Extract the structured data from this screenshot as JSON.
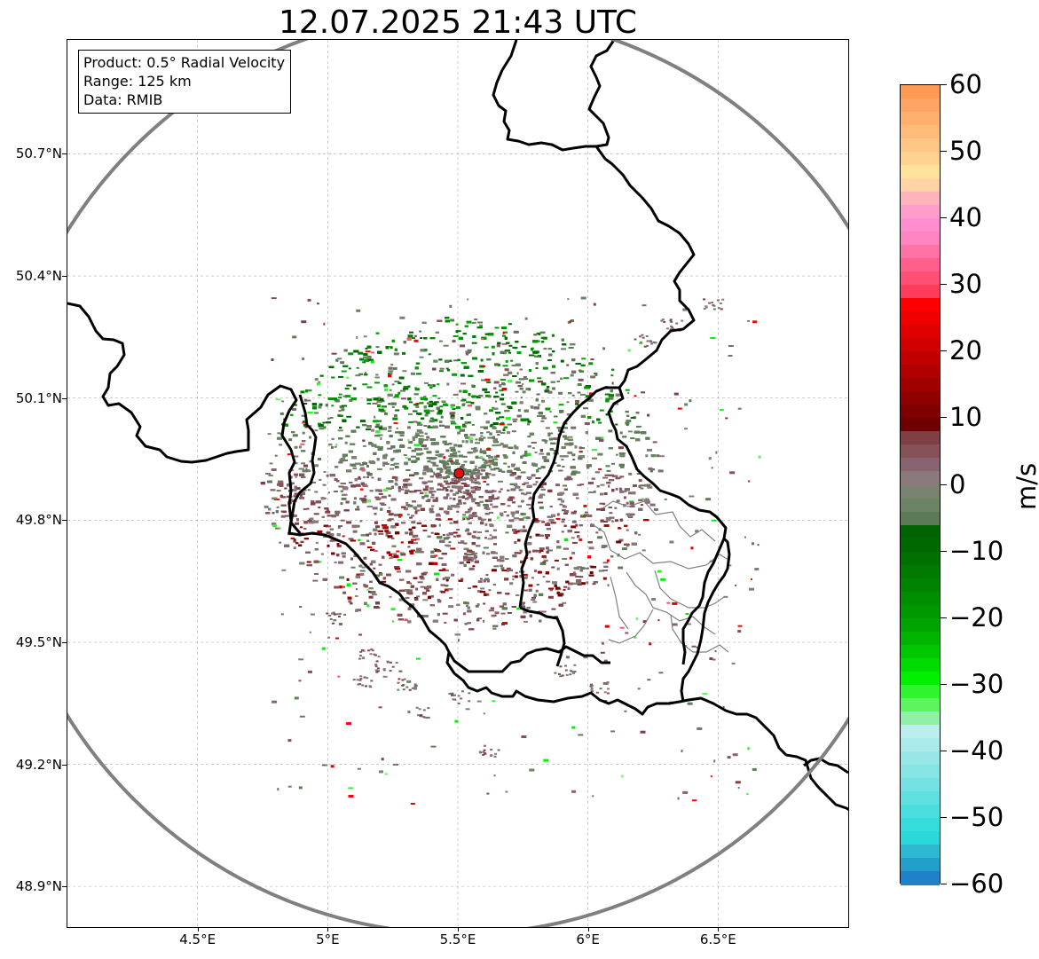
{
  "title": "12.07.2025 21:43 UTC",
  "info_box": {
    "product": "Product: 0.5° Radial Velocity",
    "range": "Range: 125 km",
    "data": "Data: RMIB"
  },
  "map": {
    "lon_range": [
      4.0,
      7.0
    ],
    "lat_range": [
      48.8,
      50.98
    ],
    "lat_ticks": [
      {
        "value": 48.9,
        "label": "48.9°N"
      },
      {
        "value": 49.2,
        "label": "49.2°N"
      },
      {
        "value": 49.5,
        "label": "49.5°N"
      },
      {
        "value": 49.8,
        "label": "49.8°N"
      },
      {
        "value": 50.1,
        "label": "50.1°N"
      },
      {
        "value": 50.4,
        "label": "50.4°N"
      },
      {
        "value": 50.7,
        "label": "50.7°N"
      }
    ],
    "lon_ticks": [
      {
        "value": 4.5,
        "label": "4.5°E"
      },
      {
        "value": 5.0,
        "label": "5°E"
      },
      {
        "value": 5.5,
        "label": "5.5°E"
      },
      {
        "value": 6.0,
        "label": "6°E"
      },
      {
        "value": 6.5,
        "label": "6.5°E"
      }
    ],
    "radar_site": {
      "lon": 5.505,
      "lat": 49.915
    },
    "range_ring_km": 125,
    "colors": {
      "range_ring": "#808080",
      "border": "#000000",
      "admin": "#808080",
      "grid": "#b0b0b0",
      "site_marker": "#e01010"
    }
  },
  "colorbar": {
    "unit": "m/s",
    "min": -60,
    "max": 60,
    "ticks": [
      {
        "value": 60,
        "label": "60"
      },
      {
        "value": 50,
        "label": "50"
      },
      {
        "value": 40,
        "label": "40"
      },
      {
        "value": 30,
        "label": "30"
      },
      {
        "value": 20,
        "label": "20"
      },
      {
        "value": 10,
        "label": "10"
      },
      {
        "value": 0,
        "label": "0"
      },
      {
        "value": -10,
        "label": "−10"
      },
      {
        "value": -20,
        "label": "−20"
      },
      {
        "value": -30,
        "label": "−30"
      },
      {
        "value": -40,
        "label": "−40"
      },
      {
        "value": -50,
        "label": "−50"
      },
      {
        "value": -60,
        "label": "−60"
      }
    ],
    "bands": [
      {
        "from": 58,
        "to": 60,
        "color": "#ff9a55"
      },
      {
        "from": 56,
        "to": 58,
        "color": "#ffa563"
      },
      {
        "from": 54,
        "to": 56,
        "color": "#ffb06f"
      },
      {
        "from": 52,
        "to": 54,
        "color": "#ffbb7a"
      },
      {
        "from": 50,
        "to": 52,
        "color": "#ffc785"
      },
      {
        "from": 48,
        "to": 50,
        "color": "#ffd291"
      },
      {
        "from": 46,
        "to": 48,
        "color": "#ffe39b"
      },
      {
        "from": 44,
        "to": 46,
        "color": "#ffd3a5"
      },
      {
        "from": 42,
        "to": 44,
        "color": "#ffb3bb"
      },
      {
        "from": 40,
        "to": 42,
        "color": "#ff9dcb"
      },
      {
        "from": 38,
        "to": 40,
        "color": "#ff8ed0"
      },
      {
        "from": 36,
        "to": 38,
        "color": "#ff85c2"
      },
      {
        "from": 34,
        "to": 36,
        "color": "#ff72a6"
      },
      {
        "from": 32,
        "to": 34,
        "color": "#ff5f8b"
      },
      {
        "from": 30,
        "to": 32,
        "color": "#ff4f74"
      },
      {
        "from": 28,
        "to": 30,
        "color": "#ff3c5a"
      },
      {
        "from": 26,
        "to": 28,
        "color": "#ff0000"
      },
      {
        "from": 24,
        "to": 26,
        "color": "#f00000"
      },
      {
        "from": 22,
        "to": 24,
        "color": "#e00000"
      },
      {
        "from": 20,
        "to": 22,
        "color": "#d00000"
      },
      {
        "from": 18,
        "to": 20,
        "color": "#c00000"
      },
      {
        "from": 16,
        "to": 18,
        "color": "#b00000"
      },
      {
        "from": 14,
        "to": 16,
        "color": "#a00000"
      },
      {
        "from": 12,
        "to": 14,
        "color": "#900000"
      },
      {
        "from": 10,
        "to": 12,
        "color": "#800000"
      },
      {
        "from": 8,
        "to": 10,
        "color": "#6e0000"
      },
      {
        "from": 6,
        "to": 8,
        "color": "#7e4044"
      },
      {
        "from": 4,
        "to": 6,
        "color": "#875158"
      },
      {
        "from": 2,
        "to": 4,
        "color": "#876470"
      },
      {
        "from": 0,
        "to": 2,
        "color": "#8a7a7c"
      },
      {
        "from": -2,
        "to": 0,
        "color": "#7a8270"
      },
      {
        "from": -4,
        "to": -2,
        "color": "#6a8464"
      },
      {
        "from": -6,
        "to": -4,
        "color": "#5c7a56"
      },
      {
        "from": -8,
        "to": -6,
        "color": "#006400"
      },
      {
        "from": -10,
        "to": -8,
        "color": "#006800"
      },
      {
        "from": -12,
        "to": -10,
        "color": "#007000"
      },
      {
        "from": -14,
        "to": -12,
        "color": "#007a00"
      },
      {
        "from": -16,
        "to": -14,
        "color": "#008400"
      },
      {
        "from": -18,
        "to": -16,
        "color": "#008e00"
      },
      {
        "from": -20,
        "to": -18,
        "color": "#009800"
      },
      {
        "from": -22,
        "to": -20,
        "color": "#00a400"
      },
      {
        "from": -24,
        "to": -22,
        "color": "#00b400"
      },
      {
        "from": -26,
        "to": -24,
        "color": "#00c800"
      },
      {
        "from": -28,
        "to": -26,
        "color": "#00dc00"
      },
      {
        "from": -30,
        "to": -28,
        "color": "#00f000"
      },
      {
        "from": -32,
        "to": -30,
        "color": "#2ef52e"
      },
      {
        "from": -34,
        "to": -32,
        "color": "#5df55d"
      },
      {
        "from": -36,
        "to": -34,
        "color": "#90f0a8"
      },
      {
        "from": -38,
        "to": -36,
        "color": "#bceeee"
      },
      {
        "from": -40,
        "to": -38,
        "color": "#aaeaea"
      },
      {
        "from": -42,
        "to": -40,
        "color": "#98e6e6"
      },
      {
        "from": -44,
        "to": -42,
        "color": "#86e4e4"
      },
      {
        "from": -46,
        "to": -44,
        "color": "#74e2e2"
      },
      {
        "from": -48,
        "to": -46,
        "color": "#5fe0e0"
      },
      {
        "from": -50,
        "to": -48,
        "color": "#4adede"
      },
      {
        "from": -52,
        "to": -50,
        "color": "#36dcdc"
      },
      {
        "from": -54,
        "to": -52,
        "color": "#2ad8da"
      },
      {
        "from": -56,
        "to": -54,
        "color": "#2bb8d0"
      },
      {
        "from": -58,
        "to": -56,
        "color": "#239fcc"
      },
      {
        "from": -60,
        "to": -58,
        "color": "#1f82c8"
      }
    ]
  }
}
